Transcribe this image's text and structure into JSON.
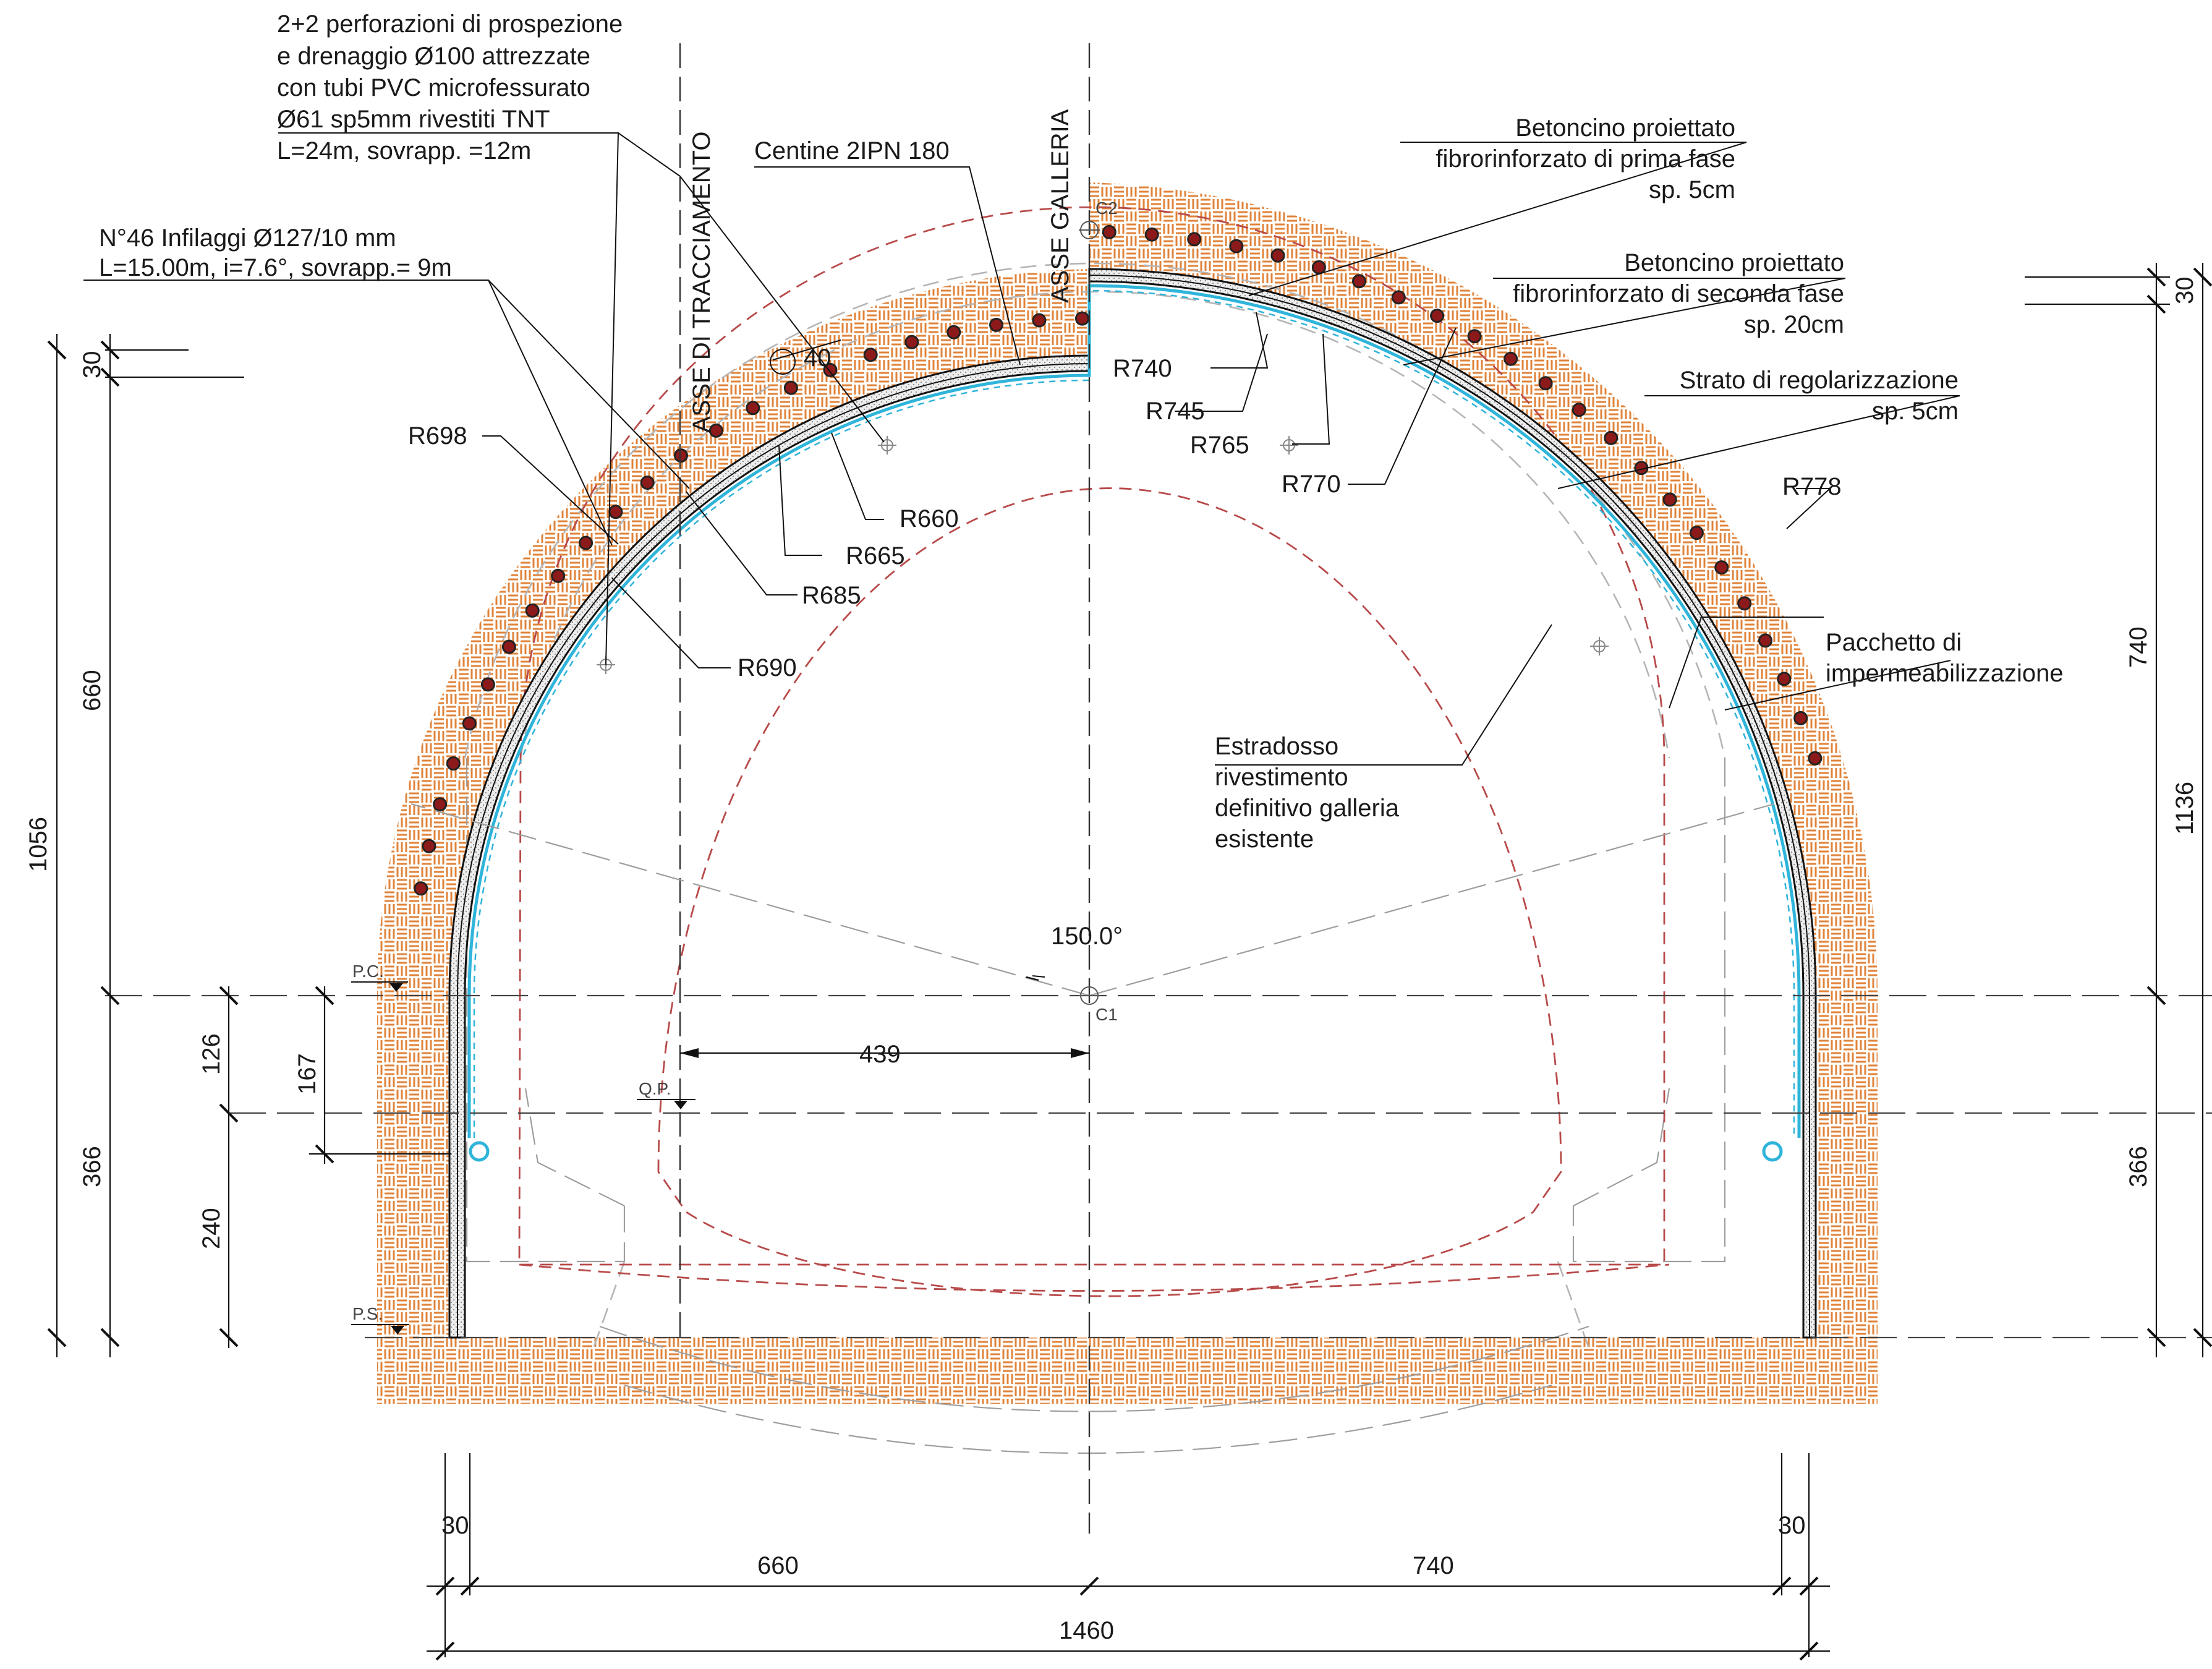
{
  "colors": {
    "ground_hatch": "#e0833a",
    "waterproofing": "#2fb4da",
    "existing_lining": "#b84a4a",
    "bolt_fill": "#8c1a1a",
    "shotcrete_fill": "#e4e4e4"
  },
  "icons": {
    "forepole": "circle-red-dot",
    "survey_point": "crosshair-circle"
  },
  "axes": {
    "tracciamento": "ASSE  DI TRACCIAMENTO",
    "galleria": "ASSE  GALLERIA"
  },
  "centers": {
    "c1": "C1",
    "c2": "C2"
  },
  "levels": {
    "pc": "P.C.",
    "qp": "Q.P.",
    "ps": "P.S."
  },
  "annotations": {
    "perforazioni": [
      "2+2 perforazioni di prospezione",
      "e drenaggio Ø100 attrezzate",
      "con tubi PVC microfessurato",
      "Ø61 sp5mm rivestiti TNT",
      "L=24m, sovrapp. =12m"
    ],
    "infilaggi": [
      "N°46 Infilaggi Ø127/10 mm",
      "L=15.00m, i=7.6°, sovrapp.= 9m"
    ],
    "centine": "Centine 2IPN 180",
    "betoncino1": [
      "Betoncino proiettato",
      "fibrorinforzato di prima fase",
      "sp. 5cm"
    ],
    "betoncino2": [
      "Betoncino proiettato",
      "fibrorinforzato di seconda fase",
      "sp. 20cm"
    ],
    "strato": [
      "Strato di regolarizzazione",
      "sp. 5cm"
    ],
    "pacchetto": [
      "Pacchetto di",
      "impermeabilizzazione"
    ],
    "estradosso": [
      "Estradosso",
      "rivestimento",
      "definitivo galleria",
      "esistente"
    ]
  },
  "radii": {
    "r698": "R698",
    "r660": "R660",
    "r665": "R665",
    "r685": "R685",
    "r690": "R690",
    "r740": "R740",
    "r745": "R745",
    "r765": "R765",
    "r770": "R770",
    "r778": "R778"
  },
  "angles": {
    "a40": "40",
    "a150": "150.0°"
  },
  "dimensions": {
    "left_top_30": "30",
    "left_660": "660",
    "left_1056": "1056",
    "left_126": "126",
    "left_167": "167",
    "left_366": "366",
    "left_240": "240",
    "right_30": "30",
    "right_740": "740",
    "right_1136": "1136",
    "right_366": "366",
    "offset_439": "439",
    "bottom_30_left": "30",
    "bottom_30_right": "30",
    "bottom_660": "660",
    "bottom_740": "740",
    "bottom_1460": "1460"
  }
}
